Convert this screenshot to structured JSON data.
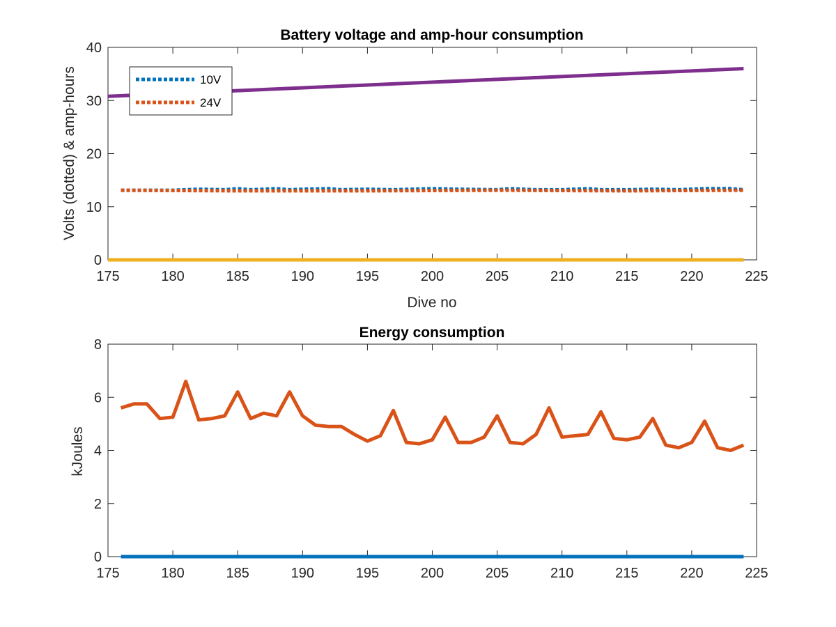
{
  "chart_data": [
    {
      "type": "line",
      "title": "Battery voltage and amp-hour consumption",
      "xlabel": "Dive no",
      "ylabel": "Volts (dotted) & amp-hours",
      "xlim": [
        175,
        225
      ],
      "ylim": [
        0,
        40
      ],
      "xticks": [
        "175",
        "180",
        "185",
        "190",
        "195",
        "200",
        "205",
        "210",
        "215",
        "220",
        "225"
      ],
      "yticks": [
        "0",
        "10",
        "20",
        "30",
        "40"
      ],
      "grid": false,
      "legend": {
        "position": "top-left",
        "entries": [
          "10V",
          "24V"
        ]
      },
      "series": [
        {
          "name": "10V",
          "style": "dotted",
          "color": "#0072BD",
          "x": [
            176,
            180,
            182,
            184,
            185,
            186,
            188,
            189,
            190,
            192,
            193,
            195,
            197,
            200,
            202,
            205,
            206,
            208,
            210,
            212,
            213,
            215,
            217,
            219,
            221,
            223,
            224
          ],
          "y": [
            13.1,
            13.1,
            13.3,
            13.2,
            13.4,
            13.2,
            13.4,
            13.2,
            13.3,
            13.4,
            13.2,
            13.3,
            13.2,
            13.4,
            13.3,
            13.2,
            13.4,
            13.2,
            13.2,
            13.4,
            13.2,
            13.2,
            13.3,
            13.2,
            13.4,
            13.4,
            13.2
          ]
        },
        {
          "name": "24V",
          "style": "dotted",
          "color": "#D95319",
          "x": [
            176,
            185,
            195,
            205,
            215,
            224
          ],
          "y": [
            13.1,
            13.0,
            13.0,
            13.1,
            13.0,
            13.1
          ]
        },
        {
          "style": "solid",
          "color": "#7E2F8E",
          "x": [
            175,
            224
          ],
          "y": [
            30.8,
            36.0
          ]
        },
        {
          "style": "solid",
          "color": "#EDB120",
          "x": [
            175,
            224
          ],
          "y": [
            0,
            0
          ]
        }
      ]
    },
    {
      "type": "line",
      "title": "Energy consumption",
      "xlabel": "",
      "ylabel": "kJoules",
      "xlim": [
        175,
        225
      ],
      "ylim": [
        0,
        8
      ],
      "xticks": [
        "175",
        "180",
        "185",
        "190",
        "195",
        "200",
        "205",
        "210",
        "215",
        "220",
        "225"
      ],
      "yticks": [
        "0",
        "2",
        "4",
        "6",
        "8"
      ],
      "grid": false,
      "series": [
        {
          "style": "solid",
          "color": "#D95319",
          "x": [
            176,
            177,
            178,
            179,
            180,
            181,
            182,
            183,
            184,
            185,
            186,
            187,
            188,
            189,
            190,
            191,
            192,
            193,
            194,
            195,
            196,
            197,
            198,
            199,
            200,
            201,
            202,
            203,
            204,
            205,
            206,
            207,
            208,
            209,
            210,
            211,
            212,
            213,
            214,
            215,
            216,
            217,
            218,
            219,
            220,
            221,
            222,
            223,
            224
          ],
          "y": [
            5.6,
            5.75,
            5.75,
            5.2,
            5.25,
            6.6,
            5.15,
            5.2,
            5.3,
            6.2,
            5.2,
            5.4,
            5.3,
            6.2,
            5.3,
            4.95,
            4.9,
            4.9,
            4.6,
            4.35,
            4.55,
            5.5,
            4.3,
            4.25,
            4.4,
            5.25,
            4.3,
            4.3,
            4.5,
            5.3,
            4.3,
            4.25,
            4.6,
            5.6,
            4.5,
            4.55,
            4.6,
            5.45,
            4.45,
            4.4,
            4.5,
            5.2,
            4.2,
            4.1,
            4.3,
            5.1,
            4.1,
            4.0,
            4.2
          ]
        },
        {
          "style": "solid",
          "color": "#0072BD",
          "x": [
            176,
            224
          ],
          "y": [
            0,
            0
          ]
        }
      ]
    }
  ]
}
